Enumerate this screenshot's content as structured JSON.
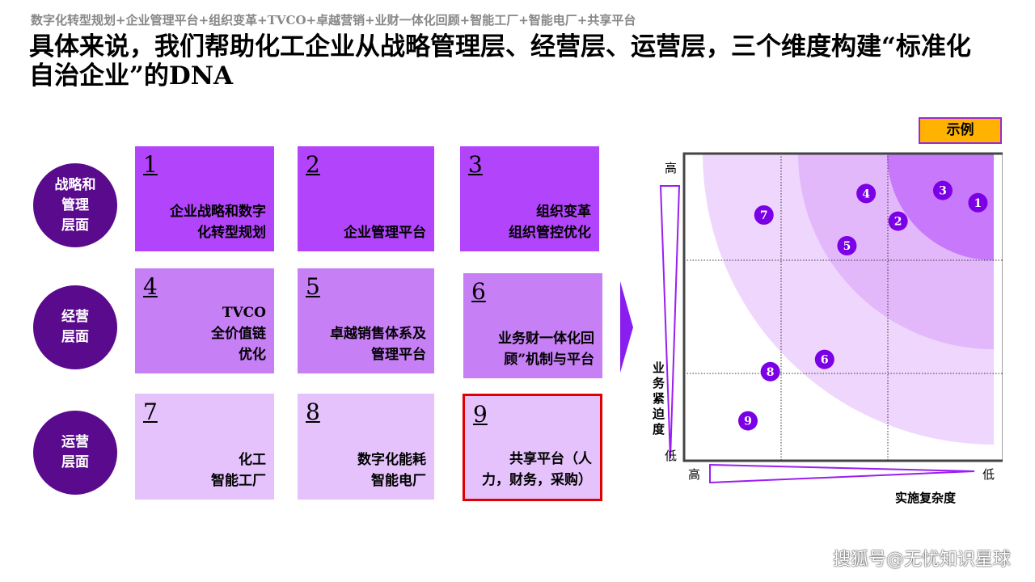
{
  "subtitle": "数字化转型规划+企业管理平台+组织变革+TVCO+卓越营销+业财一体化回顾+智能工厂+智能电厂+共享平台",
  "title": "具体来说，我们帮助化工企业从战略管理层、经营层、运营层，三个维度构建“标准化自治企业”的DNA",
  "layers": [
    "战略和\n管理\n层面",
    "经营\n层面",
    "运营\n层面"
  ],
  "boxes": [
    {
      "num": "1",
      "text": "企业战略和数字\n化转型规划"
    },
    {
      "num": "2",
      "text": "企业管理平台"
    },
    {
      "num": "3",
      "text": "组织变革\n组织管控优化"
    },
    {
      "num": "4",
      "text": "TVCO\n全价值链\n优化"
    },
    {
      "num": "5",
      "text": "卓越销售体系及\n管理平台"
    },
    {
      "num": "6",
      "text": "业务财一体化回\n顾”机制与平台"
    },
    {
      "num": "7",
      "text": "化工\n智能工厂"
    },
    {
      "num": "8",
      "text": "数字化能耗\n智能电厂"
    },
    {
      "num": "9",
      "text": "共享平台（人\n力，财务，采购）"
    }
  ],
  "colors": {
    "strategy": "#b244fb",
    "operation": "#c77ff6",
    "execution": "#e5c2fb",
    "layer_circle": "#5a0a8c",
    "highlight": "#e00000",
    "point": "#7b00e6",
    "legend": "#ffb200"
  },
  "legend_label": "示例",
  "watermark": "搜狐号@无忧知识星球",
  "chart_data": {
    "type": "scatter",
    "ylabel": "业务紧迫度",
    "y_high": "高",
    "y_low": "低",
    "xlabel": "实施复杂度",
    "x_high": "高",
    "x_low": "低",
    "grid": "3x3 dotted",
    "points": [
      {
        "label": "1",
        "x": 92,
        "y": 84
      },
      {
        "label": "2",
        "x": 67,
        "y": 78
      },
      {
        "label": "3",
        "x": 81,
        "y": 88
      },
      {
        "label": "4",
        "x": 57,
        "y": 87
      },
      {
        "label": "5",
        "x": 51,
        "y": 70
      },
      {
        "label": "6",
        "x": 44,
        "y": 33
      },
      {
        "label": "7",
        "x": 25,
        "y": 80
      },
      {
        "label": "8",
        "x": 27,
        "y": 29
      },
      {
        "label": "9",
        "x": 20,
        "y": 13
      }
    ]
  }
}
